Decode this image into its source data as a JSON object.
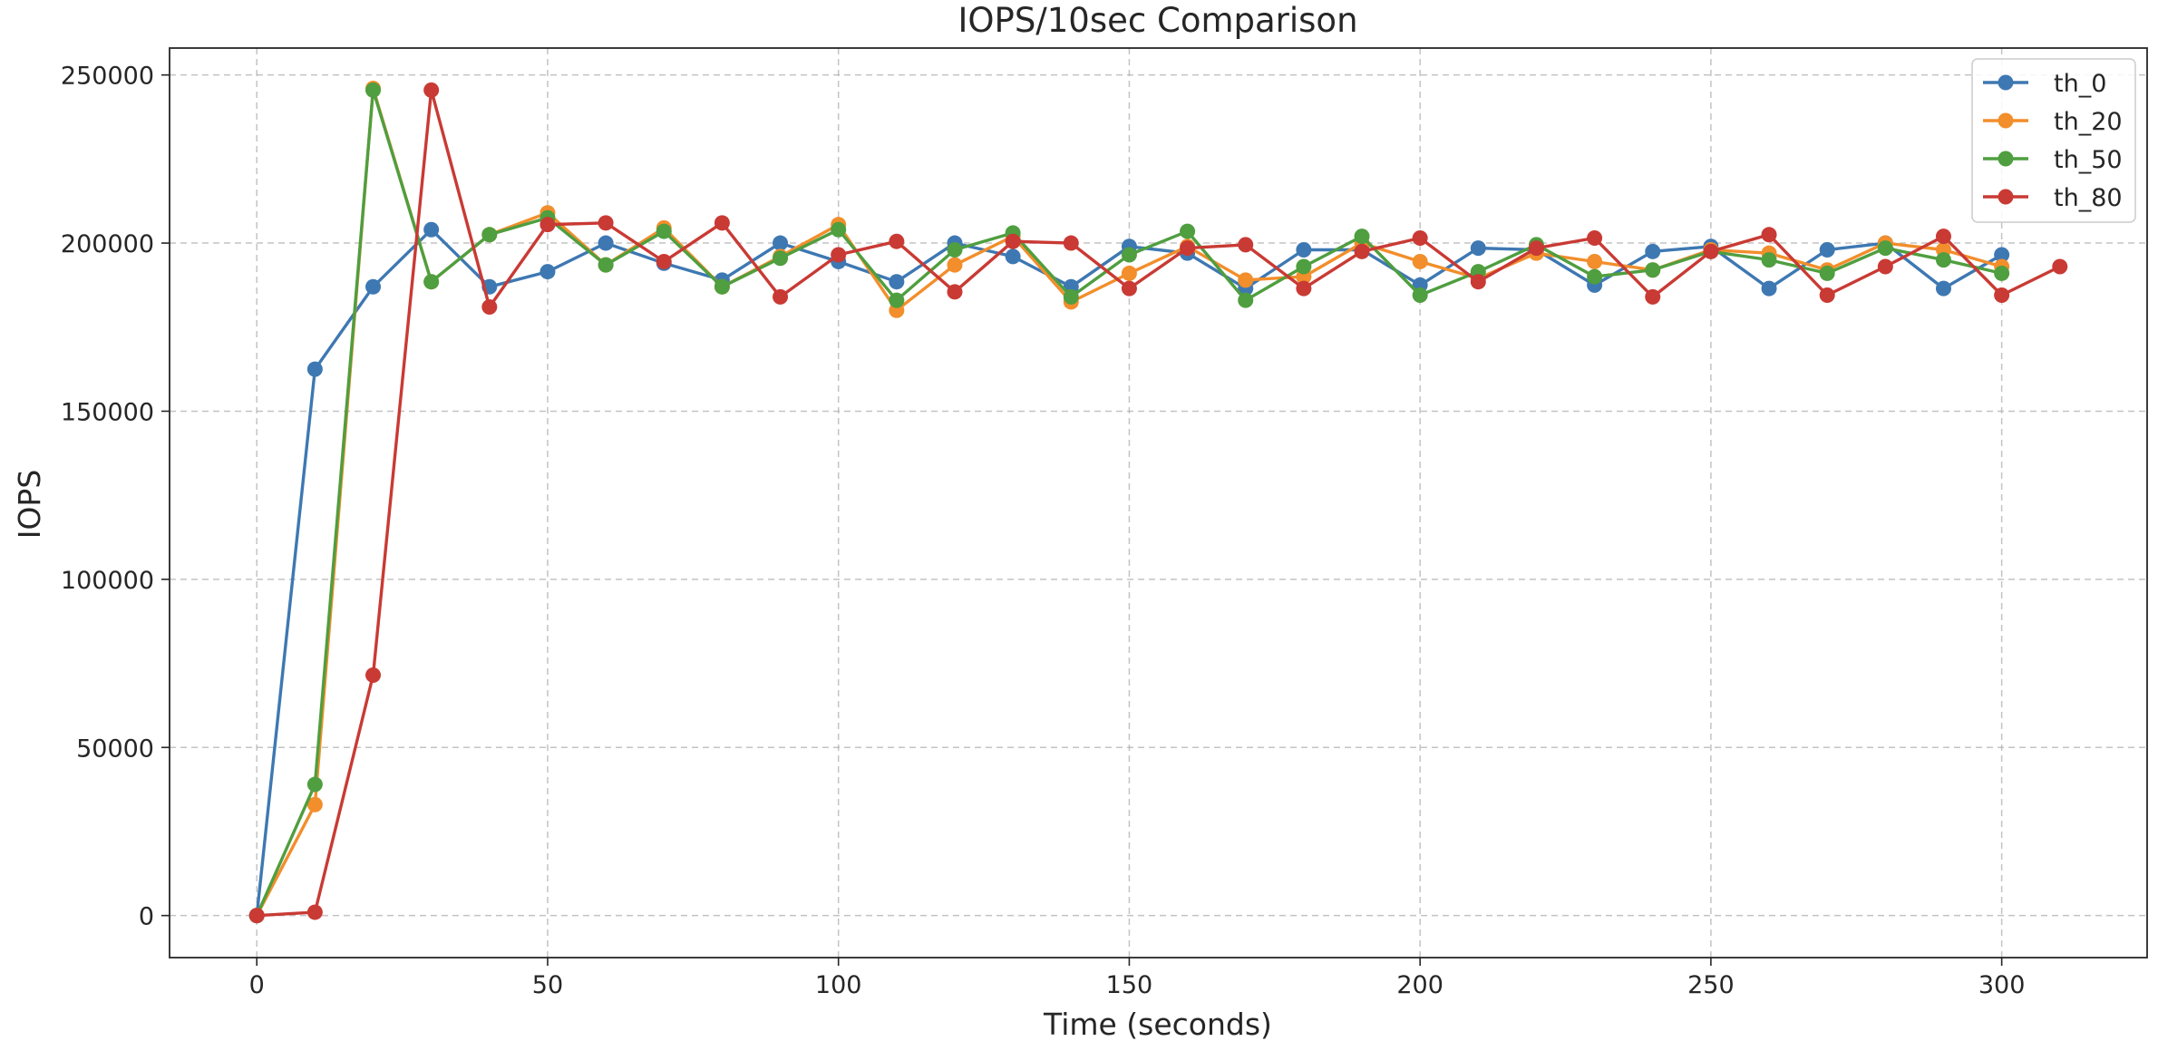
{
  "chart_data": {
    "type": "line",
    "title": "IOPS/10sec Comparison",
    "xlabel": "Time (seconds)",
    "ylabel": "IOPS",
    "xlim": [
      -15,
      325
    ],
    "ylim": [
      -12500,
      258000
    ],
    "x_ticks": [
      0,
      50,
      100,
      150,
      200,
      250,
      300
    ],
    "y_ticks": [
      0,
      50000,
      100000,
      150000,
      200000,
      250000
    ],
    "grid": true,
    "legend_position": "top-right",
    "series": [
      {
        "name": "th_0",
        "color": "#3e78b2",
        "x": [
          0,
          10,
          20,
          30,
          40,
          50,
          60,
          70,
          80,
          90,
          100,
          110,
          120,
          130,
          140,
          150,
          160,
          170,
          180,
          190,
          200,
          210,
          220,
          230,
          240,
          250,
          260,
          270,
          280,
          290,
          300
        ],
        "values": [
          0,
          162500,
          187000,
          204000,
          187000,
          191500,
          200000,
          194000,
          189000,
          200000,
          194500,
          188500,
          200000,
          196000,
          187000,
          199000,
          197000,
          186500,
          198000,
          198000,
          187500,
          198500,
          198000,
          187500,
          197500,
          199000,
          186500,
          198000,
          200000,
          186500,
          196500
        ]
      },
      {
        "name": "th_20",
        "color": "#f28e2b",
        "x": [
          0,
          10,
          20,
          30,
          40,
          50,
          60,
          70,
          80,
          90,
          100,
          110,
          120,
          130,
          140,
          150,
          160,
          170,
          180,
          190,
          200,
          210,
          220,
          230,
          240,
          250,
          260,
          270,
          280,
          290,
          300
        ],
        "values": [
          0,
          33000,
          246000,
          188500,
          202500,
          209000,
          193500,
          204500,
          187000,
          196000,
          205500,
          180000,
          193500,
          202000,
          182500,
          191000,
          199000,
          189000,
          190000,
          200000,
          194500,
          189500,
          197000,
          194500,
          192000,
          198000,
          197000,
          192000,
          200000,
          198000,
          193000
        ]
      },
      {
        "name": "th_50",
        "color": "#4f9e3f",
        "x": [
          0,
          10,
          20,
          30,
          40,
          50,
          60,
          70,
          80,
          90,
          100,
          110,
          120,
          130,
          140,
          150,
          160,
          170,
          180,
          190,
          200,
          210,
          220,
          230,
          240,
          250,
          260,
          270,
          280,
          290,
          300
        ],
        "values": [
          0,
          39000,
          245500,
          188500,
          202500,
          207500,
          193500,
          203500,
          187000,
          195500,
          204000,
          183000,
          198000,
          203000,
          184000,
          196500,
          203500,
          183000,
          193000,
          202000,
          184500,
          191500,
          199500,
          190000,
          192000,
          197500,
          195000,
          191000,
          198500,
          195000,
          191000
        ]
      },
      {
        "name": "th_80",
        "color": "#c93a34",
        "x": [
          0,
          10,
          20,
          30,
          40,
          50,
          60,
          70,
          80,
          90,
          100,
          110,
          120,
          130,
          140,
          150,
          160,
          170,
          180,
          190,
          200,
          210,
          220,
          230,
          240,
          250,
          260,
          270,
          280,
          290,
          300,
          310
        ],
        "values": [
          0,
          1000,
          71500,
          245500,
          181000,
          205500,
          206000,
          194500,
          206000,
          184000,
          196500,
          200500,
          185500,
          200500,
          200000,
          186500,
          198500,
          199500,
          186500,
          197500,
          201500,
          188500,
          198500,
          201500,
          184000,
          197500,
          202500,
          184500,
          193000,
          202000,
          184500,
          193000
        ]
      }
    ]
  }
}
